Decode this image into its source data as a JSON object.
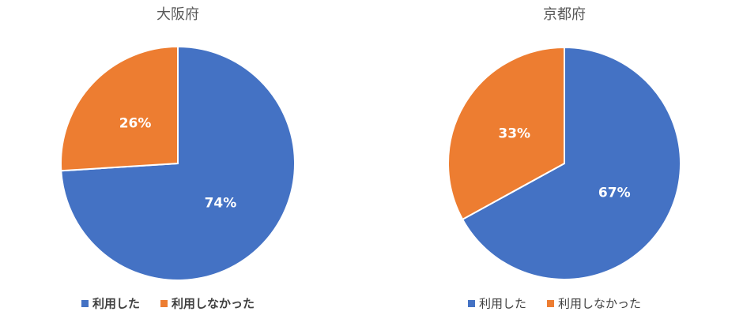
{
  "chart_data": [
    {
      "type": "pie",
      "title": "大阪府",
      "categories": [
        "利用した",
        "利用しなかった"
      ],
      "values": [
        74,
        26
      ],
      "value_labels": [
        "74%",
        "26%"
      ],
      "colors": [
        "#4472c4",
        "#ed7d31"
      ],
      "legend": "bottom"
    },
    {
      "type": "pie",
      "title": "京都府",
      "categories": [
        "利用した",
        "利用しなかった"
      ],
      "values": [
        67,
        33
      ],
      "value_labels": [
        "67%",
        "33%"
      ],
      "colors": [
        "#4472c4",
        "#ed7d31"
      ],
      "legend": "bottom"
    }
  ]
}
